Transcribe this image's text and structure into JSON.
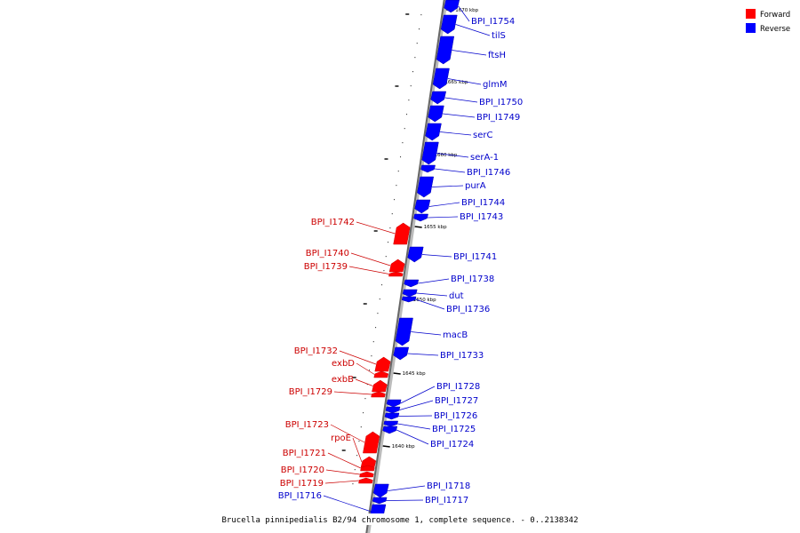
{
  "title": "Brucella pinnipedialis B2/94 chromosome 1, complete sequence. - 0..2138342",
  "legend": [
    {
      "label": "Forward",
      "color": "#ff0000"
    },
    {
      "label": "Reverse",
      "color": "#0000ff"
    }
  ],
  "colors": {
    "forward": "#ff0000",
    "reverse": "#0000ff",
    "forward_text": "#cc0000",
    "reverse_text": "#0000cc"
  },
  "ticks": [
    "1670 kbp",
    "1665 kbp",
    "1660 kbp",
    "1655 kbp",
    "1650 kbp",
    "1645 kbp",
    "1640 kbp"
  ],
  "genes": [
    {
      "name": "BPI_I1754",
      "strand": "reverse"
    },
    {
      "name": "tilS",
      "strand": "reverse"
    },
    {
      "name": "ftsH",
      "strand": "reverse"
    },
    {
      "name": "glmM",
      "strand": "reverse"
    },
    {
      "name": "BPI_I1750",
      "strand": "reverse"
    },
    {
      "name": "BPI_I1749",
      "strand": "reverse"
    },
    {
      "name": "serC",
      "strand": "reverse"
    },
    {
      "name": "serA-1",
      "strand": "reverse"
    },
    {
      "name": "BPI_I1746",
      "strand": "reverse"
    },
    {
      "name": "purA",
      "strand": "reverse"
    },
    {
      "name": "BPI_I1744",
      "strand": "reverse"
    },
    {
      "name": "BPI_I1743",
      "strand": "reverse"
    },
    {
      "name": "BPI_I1742",
      "strand": "forward"
    },
    {
      "name": "BPI_I1741",
      "strand": "reverse"
    },
    {
      "name": "BPI_I1740",
      "strand": "forward"
    },
    {
      "name": "BPI_I1739",
      "strand": "forward"
    },
    {
      "name": "BPI_I1738",
      "strand": "reverse"
    },
    {
      "name": "dut",
      "strand": "reverse"
    },
    {
      "name": "BPI_I1736",
      "strand": "reverse"
    },
    {
      "name": "macB",
      "strand": "reverse"
    },
    {
      "name": "BPI_I1733",
      "strand": "reverse"
    },
    {
      "name": "BPI_I1732",
      "strand": "forward"
    },
    {
      "name": "exbD",
      "strand": "forward"
    },
    {
      "name": "exbB",
      "strand": "forward"
    },
    {
      "name": "BPI_I1729",
      "strand": "forward"
    },
    {
      "name": "BPI_I1728",
      "strand": "reverse"
    },
    {
      "name": "BPI_I1727",
      "strand": "reverse"
    },
    {
      "name": "BPI_I1726",
      "strand": "reverse"
    },
    {
      "name": "BPI_I1725",
      "strand": "reverse"
    },
    {
      "name": "BPI_I1724",
      "strand": "reverse"
    },
    {
      "name": "BPI_I1723",
      "strand": "forward"
    },
    {
      "name": "rpoE",
      "strand": "forward"
    },
    {
      "name": "BPI_I1721",
      "strand": "forward"
    },
    {
      "name": "BPI_I1720",
      "strand": "forward"
    },
    {
      "name": "BPI_I1719",
      "strand": "forward"
    },
    {
      "name": "BPI_I1718",
      "strand": "reverse"
    },
    {
      "name": "BPI_I1717",
      "strand": "reverse"
    },
    {
      "name": "BPI_I1716",
      "strand": "reverse"
    }
  ]
}
